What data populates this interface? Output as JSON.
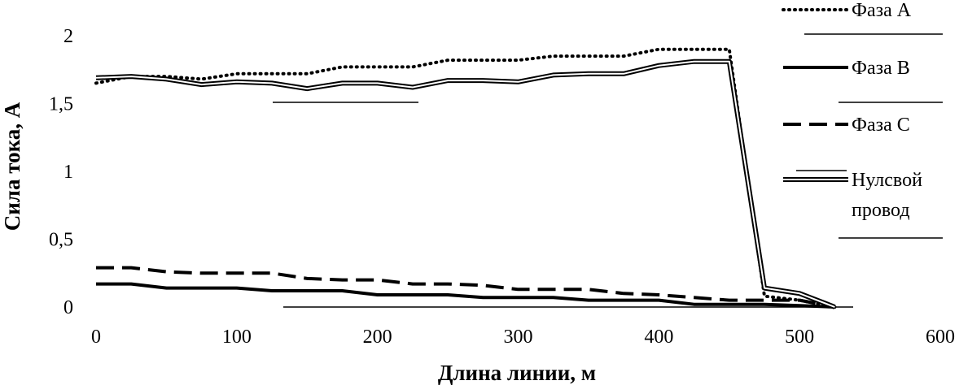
{
  "chart_data": {
    "type": "line",
    "xlabel": "Длина линии, м",
    "ylabel": "Сила тока, А",
    "xlim": [
      0,
      600
    ],
    "ylim": [
      0,
      2
    ],
    "xticks": [
      0,
      100,
      200,
      300,
      400,
      500,
      600
    ],
    "yticks": [
      0,
      0.5,
      1,
      1.5,
      2
    ],
    "ytick_labels": [
      "0",
      "0,5",
      "1",
      "1,5",
      "2"
    ],
    "legend_position": "right",
    "x": [
      0,
      25,
      50,
      75,
      100,
      125,
      150,
      175,
      200,
      225,
      250,
      275,
      300,
      325,
      350,
      375,
      400,
      425,
      450,
      475,
      500,
      525
    ],
    "series": [
      {
        "name": "Фаза А",
        "style": "dotted",
        "values": [
          1.65,
          1.7,
          1.7,
          1.68,
          1.72,
          1.72,
          1.72,
          1.77,
          1.77,
          1.77,
          1.82,
          1.82,
          1.82,
          1.85,
          1.85,
          1.85,
          1.9,
          1.9,
          1.9,
          0.08,
          0.05,
          0.0
        ]
      },
      {
        "name": "Фаза В",
        "style": "solid",
        "values": [
          0.17,
          0.17,
          0.14,
          0.14,
          0.14,
          0.12,
          0.12,
          0.12,
          0.09,
          0.09,
          0.09,
          0.07,
          0.07,
          0.07,
          0.05,
          0.05,
          0.05,
          0.02,
          0.02,
          0.02,
          0.01,
          0.0
        ]
      },
      {
        "name": "Фаза С",
        "style": "dashed",
        "values": [
          0.29,
          0.29,
          0.26,
          0.25,
          0.25,
          0.25,
          0.21,
          0.2,
          0.2,
          0.17,
          0.17,
          0.16,
          0.13,
          0.13,
          0.13,
          0.1,
          0.09,
          0.07,
          0.05,
          0.05,
          0.05,
          0.0
        ]
      },
      {
        "name": "Нулсвой провод",
        "style": "double",
        "values": [
          1.69,
          1.7,
          1.68,
          1.64,
          1.66,
          1.65,
          1.61,
          1.65,
          1.65,
          1.62,
          1.67,
          1.67,
          1.66,
          1.71,
          1.72,
          1.72,
          1.78,
          1.81,
          1.81,
          0.14,
          0.1,
          0.0
        ]
      }
    ],
    "legend_labels": {
      "phase_a": "Фаза А",
      "phase_b": "Фаза В",
      "phase_c": "Фаза С",
      "neutral_line1": "Нулсвой",
      "neutral_line2": "провод"
    }
  }
}
